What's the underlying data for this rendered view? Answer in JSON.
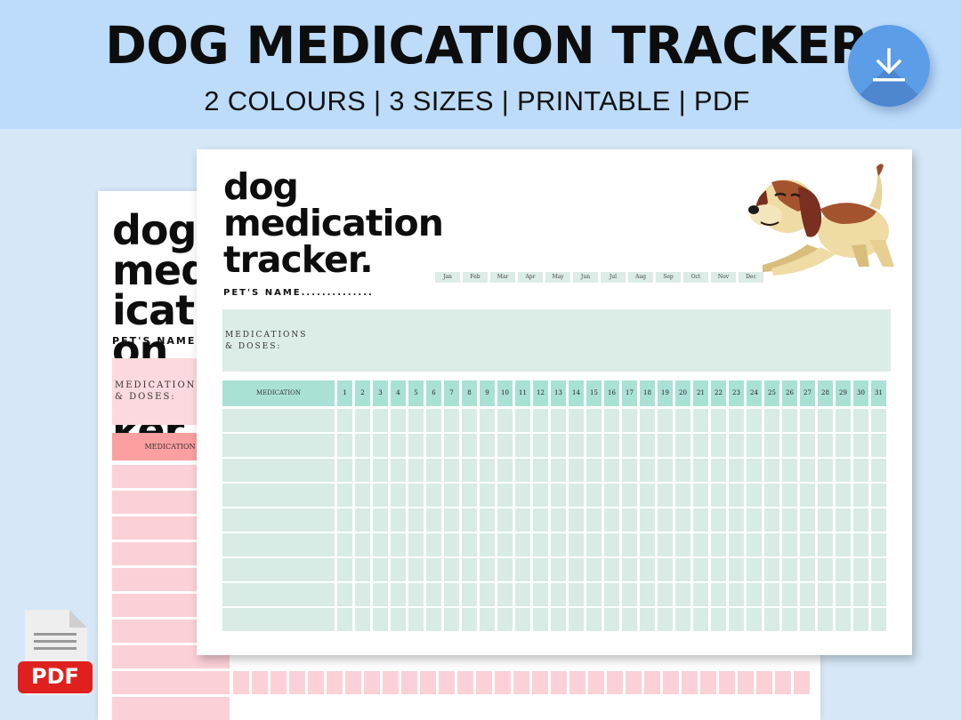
{
  "banner": {
    "title": "DOG MEDICATION TRACKER",
    "subtitle": "2 COLOURS | 3 SIZES | PRINTABLE | PDF",
    "download_icon": "download-icon",
    "bg_color": "#bcdcfa"
  },
  "back_sheet": {
    "title": "dog medication tracker.",
    "pet_name_label": "PET'S NAME..............",
    "meds_label_line1": "MEDICATIONS",
    "meds_label_line2": "& DOSES:",
    "medication_header": "MEDICATION",
    "accent_color": "#fb9fa1",
    "row_color": "#fcd0d7"
  },
  "front_sheet": {
    "title_line1": "dog",
    "title_line2": "medication",
    "title_line3": "tracker.",
    "pet_name_label": "PET'S NAME..............",
    "months": [
      "Jan",
      "Feb",
      "Mar",
      "Apr",
      "May",
      "Jun",
      "Jul",
      "Aug",
      "Sep",
      "Oct",
      "Nov",
      "Dec"
    ],
    "meds_label_line1": "MEDICATIONS",
    "meds_label_line2": "& DOSES:",
    "medication_header": "MEDICATION",
    "days": [
      "1",
      "2",
      "3",
      "4",
      "5",
      "6",
      "7",
      "8",
      "9",
      "10",
      "11",
      "12",
      "13",
      "14",
      "15",
      "16",
      "17",
      "18",
      "19",
      "20",
      "21",
      "22",
      "23",
      "24",
      "25",
      "26",
      "27",
      "28",
      "29",
      "30",
      "31"
    ],
    "accent_color": "#aae1d5",
    "row_color": "#d8ebe5",
    "illustration": "dog-illustration"
  },
  "pdf_badge": {
    "label": "PDF",
    "icon": "pdf-file-icon"
  }
}
